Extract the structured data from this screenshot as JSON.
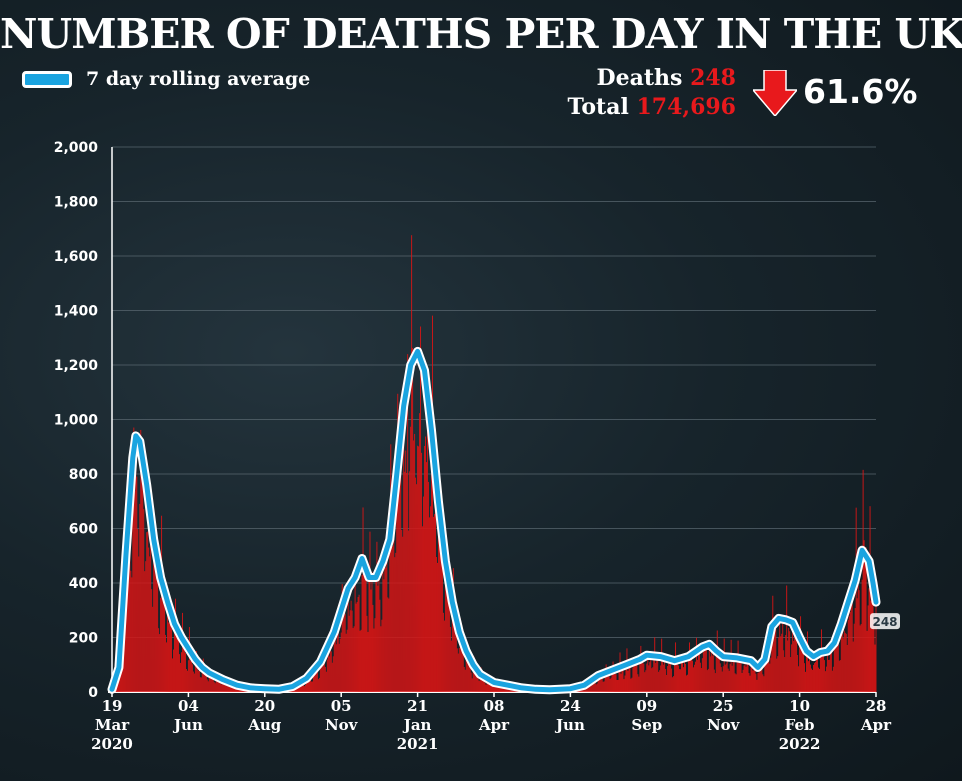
{
  "header": {
    "title": "NUMBER OF DEATHS PER DAY IN THE UK",
    "legend_label": "7 day rolling average",
    "deaths_label": "Deaths",
    "deaths_value": "248",
    "total_label": "Total",
    "total_value": "174,696",
    "change": "61.6%",
    "change_direction": "down"
  },
  "colors": {
    "bars": "#d91515",
    "line": "#1aa4e0",
    "line_outline": "#ffffff",
    "highlight": "#e8191c"
  },
  "chart_data": {
    "type": "bar",
    "title": "NUMBER OF DEATHS PER DAY IN THE UK",
    "ylim": [
      0,
      2000
    ],
    "yticks": [
      0,
      200,
      400,
      600,
      800,
      1000,
      1200,
      1400,
      1600,
      1800,
      2000
    ],
    "ytick_labels": [
      "0",
      "200",
      "400",
      "600",
      "800",
      "1,000",
      "1,200",
      "1,400",
      "1,600",
      "1,800",
      "2,000"
    ],
    "x_range": [
      "2020-03-19",
      "2022-04-28"
    ],
    "xticks": [
      {
        "date": "2020-03-19",
        "label": "19",
        "month": "Mar",
        "year": "2020"
      },
      {
        "date": "2020-06-04",
        "label": "04",
        "month": "Jun",
        "year": ""
      },
      {
        "date": "2020-08-20",
        "label": "20",
        "month": "Aug",
        "year": ""
      },
      {
        "date": "2020-11-05",
        "label": "05",
        "month": "Nov",
        "year": ""
      },
      {
        "date": "2021-01-21",
        "label": "21",
        "month": "Jan",
        "year": "2021"
      },
      {
        "date": "2021-04-08",
        "label": "08",
        "month": "Apr",
        "year": ""
      },
      {
        "date": "2021-06-24",
        "label": "24",
        "month": "Jun",
        "year": ""
      },
      {
        "date": "2021-09-09",
        "label": "09",
        "month": "Sep",
        "year": ""
      },
      {
        "date": "2021-11-25",
        "label": "25",
        "month": "Nov",
        "year": ""
      },
      {
        "date": "2022-02-10",
        "label": "10",
        "month": "Feb",
        "year": "2022"
      },
      {
        "date": "2022-04-28",
        "label": "28",
        "month": "Apr",
        "year": ""
      }
    ],
    "grid": true,
    "series": [
      {
        "name": "7 day rolling average",
        "type": "line",
        "points": [
          [
            "2020-03-19",
            10
          ],
          [
            "2020-03-26",
            90
          ],
          [
            "2020-04-02",
            500
          ],
          [
            "2020-04-09",
            860
          ],
          [
            "2020-04-12",
            940
          ],
          [
            "2020-04-16",
            920
          ],
          [
            "2020-04-23",
            760
          ],
          [
            "2020-04-30",
            560
          ],
          [
            "2020-05-07",
            420
          ],
          [
            "2020-05-14",
            330
          ],
          [
            "2020-05-21",
            250
          ],
          [
            "2020-05-28",
            200
          ],
          [
            "2020-06-04",
            160
          ],
          [
            "2020-06-11",
            120
          ],
          [
            "2020-06-18",
            90
          ],
          [
            "2020-06-25",
            70
          ],
          [
            "2020-07-09",
            45
          ],
          [
            "2020-07-23",
            25
          ],
          [
            "2020-08-06",
            15
          ],
          [
            "2020-08-20",
            12
          ],
          [
            "2020-09-03",
            10
          ],
          [
            "2020-09-17",
            20
          ],
          [
            "2020-10-01",
            50
          ],
          [
            "2020-10-15",
            110
          ],
          [
            "2020-10-29",
            220
          ],
          [
            "2020-11-05",
            300
          ],
          [
            "2020-11-12",
            380
          ],
          [
            "2020-11-19",
            420
          ],
          [
            "2020-11-26",
            490
          ],
          [
            "2020-12-03",
            420
          ],
          [
            "2020-12-10",
            420
          ],
          [
            "2020-12-17",
            480
          ],
          [
            "2020-12-24",
            560
          ],
          [
            "2020-12-31",
            800
          ],
          [
            "2021-01-07",
            1050
          ],
          [
            "2021-01-14",
            1200
          ],
          [
            "2021-01-21",
            1250
          ],
          [
            "2021-01-28",
            1180
          ],
          [
            "2021-02-04",
            960
          ],
          [
            "2021-02-11",
            700
          ],
          [
            "2021-02-18",
            480
          ],
          [
            "2021-02-25",
            330
          ],
          [
            "2021-03-04",
            220
          ],
          [
            "2021-03-11",
            150
          ],
          [
            "2021-03-18",
            100
          ],
          [
            "2021-03-25",
            65
          ],
          [
            "2021-04-08",
            35
          ],
          [
            "2021-04-22",
            25
          ],
          [
            "2021-05-06",
            15
          ],
          [
            "2021-05-20",
            10
          ],
          [
            "2021-06-03",
            8
          ],
          [
            "2021-06-24",
            12
          ],
          [
            "2021-07-08",
            25
          ],
          [
            "2021-07-22",
            60
          ],
          [
            "2021-08-05",
            80
          ],
          [
            "2021-08-19",
            100
          ],
          [
            "2021-09-02",
            120
          ],
          [
            "2021-09-09",
            135
          ],
          [
            "2021-09-23",
            130
          ],
          [
            "2021-10-07",
            115
          ],
          [
            "2021-10-21",
            130
          ],
          [
            "2021-11-04",
            165
          ],
          [
            "2021-11-11",
            175
          ],
          [
            "2021-11-18",
            150
          ],
          [
            "2021-11-25",
            130
          ],
          [
            "2021-12-09",
            125
          ],
          [
            "2021-12-23",
            115
          ],
          [
            "2021-12-30",
            90
          ],
          [
            "2022-01-06",
            120
          ],
          [
            "2022-01-13",
            240
          ],
          [
            "2022-01-20",
            270
          ],
          [
            "2022-01-27",
            265
          ],
          [
            "2022-02-03",
            255
          ],
          [
            "2022-02-10",
            200
          ],
          [
            "2022-02-17",
            150
          ],
          [
            "2022-02-24",
            130
          ],
          [
            "2022-03-03",
            145
          ],
          [
            "2022-03-10",
            150
          ],
          [
            "2022-03-17",
            180
          ],
          [
            "2022-03-24",
            250
          ],
          [
            "2022-03-31",
            330
          ],
          [
            "2022-04-07",
            410
          ],
          [
            "2022-04-14",
            520
          ],
          [
            "2022-04-21",
            480
          ],
          [
            "2022-04-25",
            400
          ],
          [
            "2022-04-28",
            330
          ]
        ]
      }
    ],
    "annotations": [
      {
        "date": "2022-04-28",
        "value": 248,
        "label": "248"
      }
    ]
  }
}
